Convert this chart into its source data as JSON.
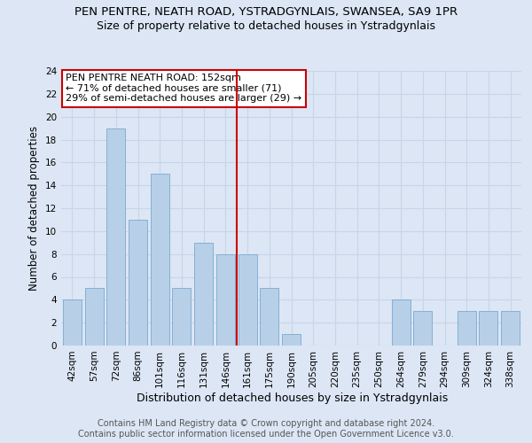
{
  "title": "PEN PENTRE, NEATH ROAD, YSTRADGYNLAIS, SWANSEA, SA9 1PR",
  "subtitle": "Size of property relative to detached houses in Ystradgynlais",
  "xlabel": "Distribution of detached houses by size in Ystradgynlais",
  "ylabel": "Number of detached properties",
  "categories": [
    "42sqm",
    "57sqm",
    "72sqm",
    "86sqm",
    "101sqm",
    "116sqm",
    "131sqm",
    "146sqm",
    "161sqm",
    "175sqm",
    "190sqm",
    "205sqm",
    "220sqm",
    "235sqm",
    "250sqm",
    "264sqm",
    "279sqm",
    "294sqm",
    "309sqm",
    "324sqm",
    "338sqm"
  ],
  "values": [
    4,
    5,
    19,
    11,
    15,
    5,
    9,
    8,
    8,
    5,
    1,
    0,
    0,
    0,
    0,
    4,
    3,
    0,
    3,
    3,
    3
  ],
  "bar_color": "#b8cfe8",
  "bar_edge_color": "#7aaad0",
  "grid_color": "#c8d4e8",
  "background_color": "#dce6f5",
  "vline_x": 7.5,
  "vline_color": "#cc0000",
  "annotation_text": "PEN PENTRE NEATH ROAD: 152sqm\n← 71% of detached houses are smaller (71)\n29% of semi-detached houses are larger (29) →",
  "annotation_box_color": "#ffffff",
  "annotation_box_edge": "#cc0000",
  "footer": "Contains HM Land Registry data © Crown copyright and database right 2024.\nContains public sector information licensed under the Open Government Licence v3.0.",
  "ylim": [
    0,
    24
  ],
  "yticks": [
    0,
    2,
    4,
    6,
    8,
    10,
    12,
    14,
    16,
    18,
    20,
    22,
    24
  ],
  "title_fontsize": 9.5,
  "subtitle_fontsize": 9,
  "xlabel_fontsize": 9,
  "ylabel_fontsize": 8.5,
  "tick_fontsize": 7.5,
  "footer_fontsize": 7,
  "annotation_fontsize": 8
}
